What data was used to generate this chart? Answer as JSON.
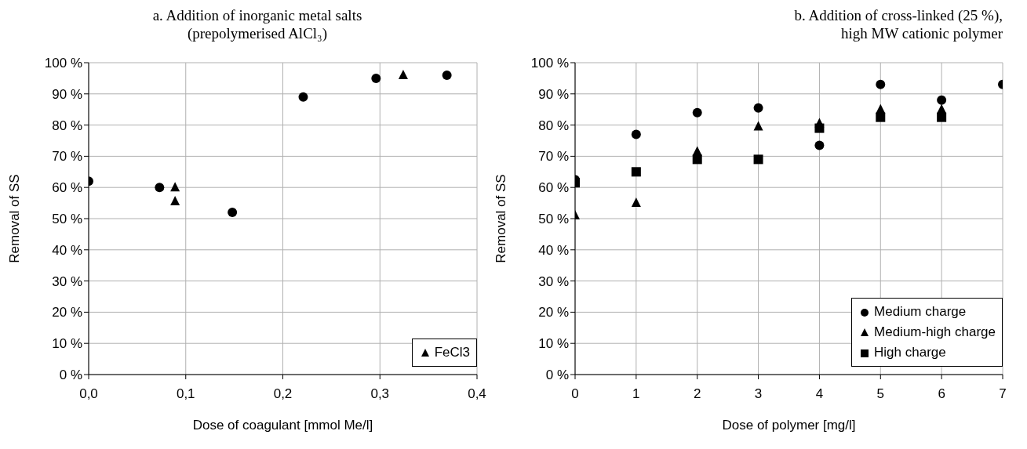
{
  "chart_data": [
    {
      "type": "scatter",
      "title": "a. Addition of inorganic metal salts\n(prepolymerised AlCl₃)",
      "xlabel": "Dose of coagulant [mmol Me/l]",
      "ylabel": "Removal of SS",
      "xlim": [
        0,
        0.4
      ],
      "xticks": [
        {
          "value": 0,
          "label": "0,0"
        },
        {
          "value": 0.1,
          "label": "0,1"
        },
        {
          "value": 0.2,
          "label": "0,2"
        },
        {
          "value": 0.3,
          "label": "0,3"
        },
        {
          "value": 0.4,
          "label": "0,4"
        }
      ],
      "ylim": [
        0,
        100
      ],
      "yticks": [
        {
          "value": 0,
          "label": "0 %"
        },
        {
          "value": 10,
          "label": "10 %"
        },
        {
          "value": 20,
          "label": "20 %"
        },
        {
          "value": 30,
          "label": "30 %"
        },
        {
          "value": 40,
          "label": "40 %"
        },
        {
          "value": 50,
          "label": "50 %"
        },
        {
          "value": 60,
          "label": "60 %"
        },
        {
          "value": 70,
          "label": "70 %"
        },
        {
          "value": 80,
          "label": "80 %"
        },
        {
          "value": 90,
          "label": "90 %"
        },
        {
          "value": 100,
          "label": "100 %"
        }
      ],
      "grid": true,
      "legend": "bottom right",
      "series": [
        {
          "color": "#000000",
          "marker": "circle",
          "x": [
            0,
            0.073,
            0.148,
            0.221,
            0.296,
            0.369
          ],
          "values": [
            62,
            60,
            52,
            89,
            95,
            96
          ]
        },
        {
          "name": "FeCl3",
          "color": "#000000",
          "marker": "triangle",
          "x": [
            0.089,
            0.089,
            0.324
          ],
          "values": [
            60,
            55.5,
            96
          ]
        }
      ]
    },
    {
      "type": "scatter",
      "title": "b. Addition of cross-linked (25 %),\nhigh MW cationic polymer",
      "xlabel": "Dose of polymer [mg/l]",
      "ylabel": "Removal of SS",
      "xlim": [
        0,
        7
      ],
      "xticks": [
        0,
        1,
        2,
        3,
        4,
        5,
        6,
        7
      ],
      "ylim": [
        0,
        100
      ],
      "yticks": [
        {
          "value": 0,
          "label": "0 %"
        },
        {
          "value": 10,
          "label": "10 %"
        },
        {
          "value": 20,
          "label": "20 %"
        },
        {
          "value": 30,
          "label": "30 %"
        },
        {
          "value": 40,
          "label": "40 %"
        },
        {
          "value": 50,
          "label": "50 %"
        },
        {
          "value": 60,
          "label": "60 %"
        },
        {
          "value": 70,
          "label": "70 %"
        },
        {
          "value": 80,
          "label": "80 %"
        },
        {
          "value": 90,
          "label": "90 %"
        },
        {
          "value": 100,
          "label": "100 %"
        }
      ],
      "grid": true,
      "legend": "bottom right",
      "series": [
        {
          "name": "Medium charge",
          "color": "#000000",
          "marker": "circle",
          "x": [
            0,
            1,
            2,
            3,
            4,
            5,
            6,
            7
          ],
          "values": [
            62.5,
            77,
            84,
            85.5,
            73.5,
            93,
            88,
            93
          ]
        },
        {
          "name": "Medium-high charge",
          "color": "#000000",
          "marker": "triangle",
          "x": [
            0,
            1,
            2,
            3,
            4,
            5,
            6
          ],
          "values": [
            51,
            55,
            71.5,
            79.5,
            80.5,
            85,
            85
          ]
        },
        {
          "name": "High charge",
          "color": "#000000",
          "marker": "square",
          "x": [
            0,
            1,
            2,
            3,
            4,
            5,
            6
          ],
          "values": [
            61.5,
            65,
            69,
            69,
            79,
            82.5,
            82.5
          ]
        }
      ]
    }
  ]
}
